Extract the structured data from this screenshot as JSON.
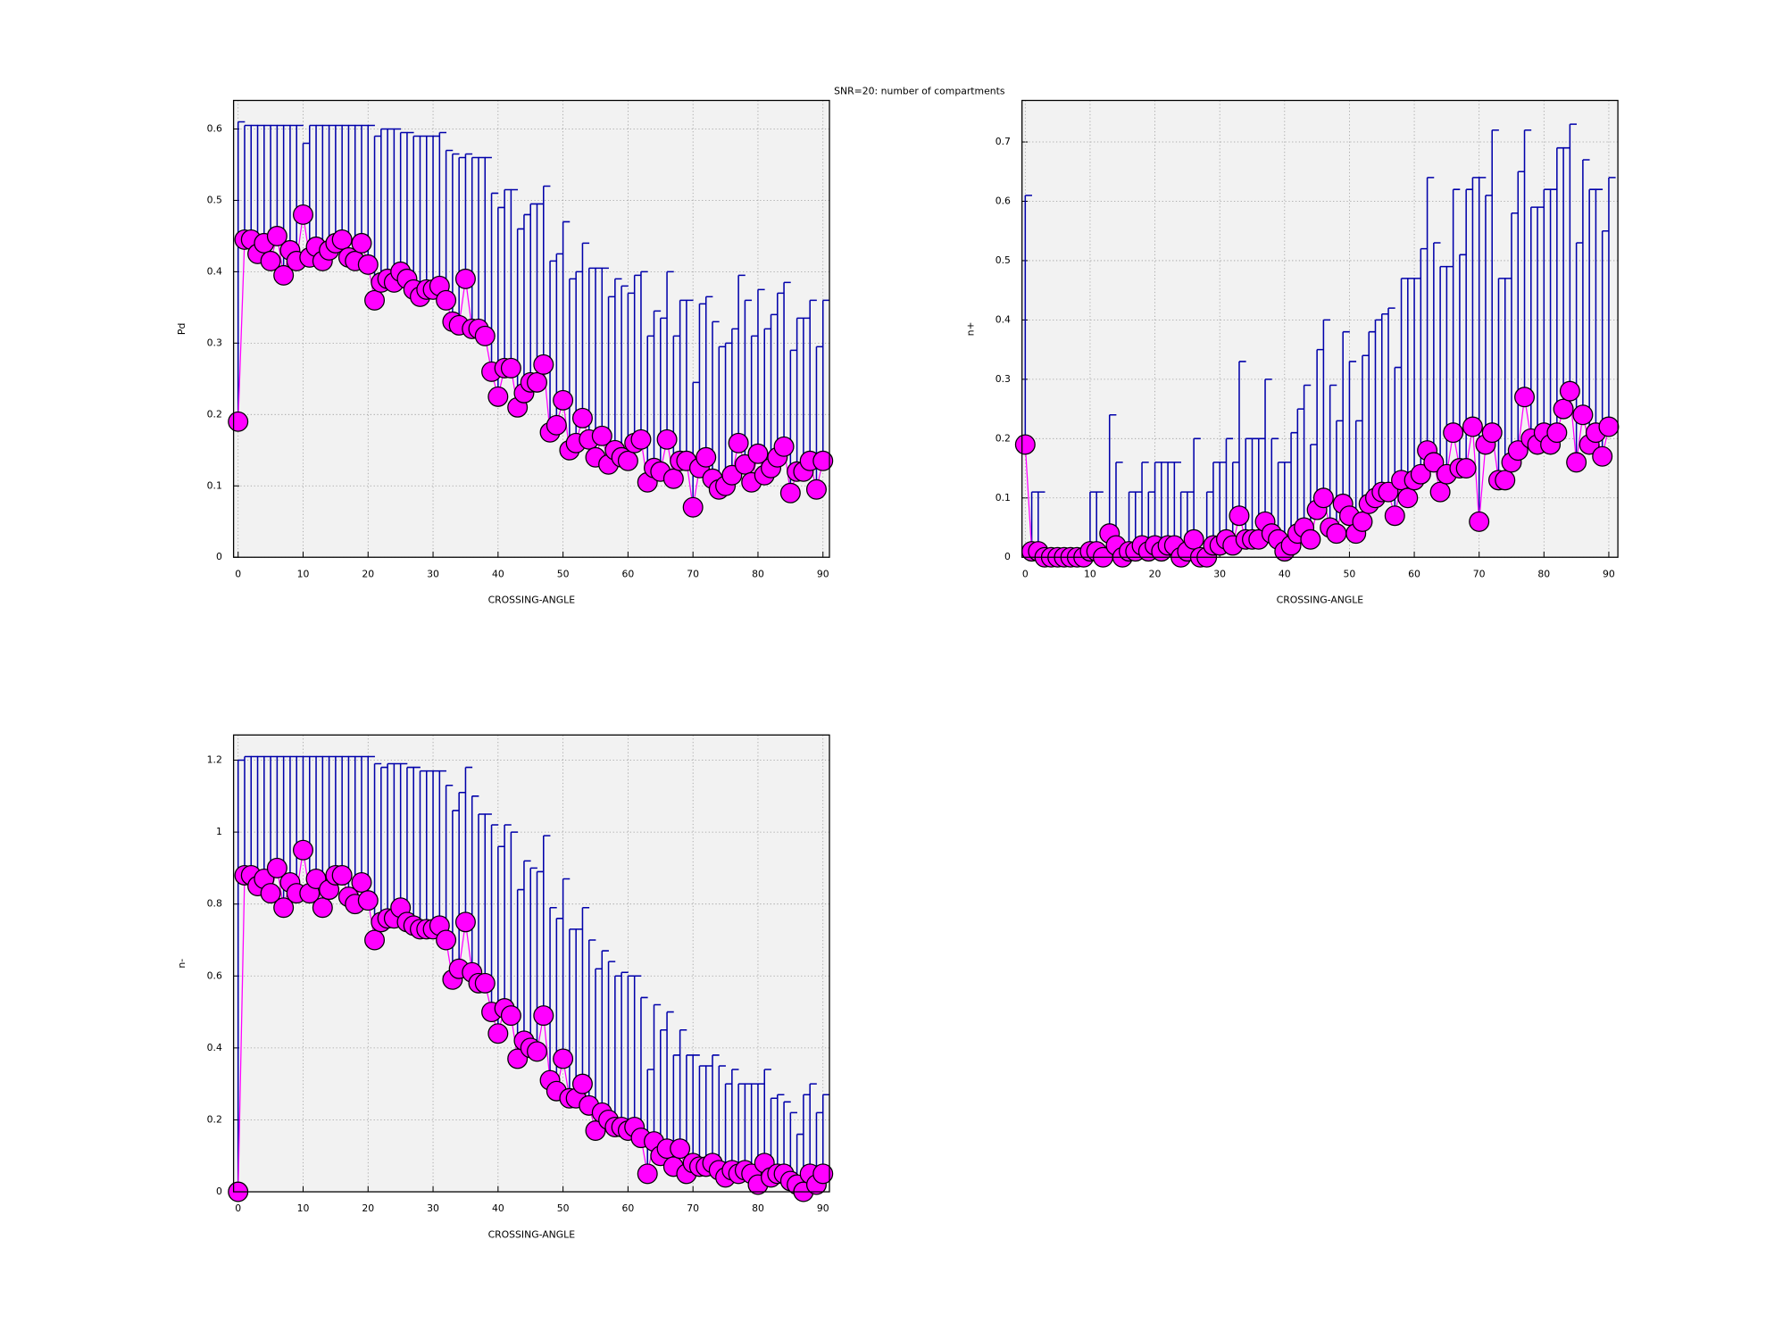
{
  "title": "SNR=20: number of compartments",
  "chart_data": [
    {
      "type": "errorbar",
      "xlabel": "CROSSING-ANGLE",
      "ylabel": "Pd",
      "x": [
        0,
        1,
        2,
        3,
        4,
        5,
        6,
        7,
        8,
        9,
        10,
        11,
        12,
        13,
        14,
        15,
        16,
        17,
        18,
        19,
        20,
        21,
        22,
        23,
        24,
        25,
        26,
        27,
        28,
        29,
        30,
        31,
        32,
        33,
        34,
        35,
        36,
        37,
        38,
        39,
        40,
        41,
        42,
        43,
        44,
        45,
        46,
        47,
        48,
        49,
        50,
        51,
        52,
        53,
        54,
        55,
        56,
        57,
        58,
        59,
        60,
        61,
        62,
        63,
        64,
        65,
        66,
        67,
        68,
        69,
        70,
        71,
        72,
        73,
        74,
        75,
        76,
        77,
        78,
        79,
        80,
        81,
        82,
        83,
        84,
        85,
        86,
        87,
        88,
        89,
        90
      ],
      "values": [
        0.19,
        0.445,
        0.445,
        0.425,
        0.44,
        0.415,
        0.45,
        0.395,
        0.43,
        0.415,
        0.48,
        0.42,
        0.435,
        0.415,
        0.43,
        0.44,
        0.445,
        0.42,
        0.415,
        0.44,
        0.41,
        0.36,
        0.385,
        0.39,
        0.385,
        0.4,
        0.39,
        0.375,
        0.365,
        0.375,
        0.375,
        0.38,
        0.36,
        0.33,
        0.325,
        0.39,
        0.32,
        0.32,
        0.31,
        0.26,
        0.225,
        0.265,
        0.265,
        0.21,
        0.23,
        0.245,
        0.245,
        0.27,
        0.175,
        0.185,
        0.22,
        0.15,
        0.16,
        0.195,
        0.165,
        0.14,
        0.17,
        0.13,
        0.15,
        0.14,
        0.135,
        0.16,
        0.165,
        0.105,
        0.125,
        0.12,
        0.165,
        0.11,
        0.135,
        0.135,
        0.07,
        0.125,
        0.14,
        0.11,
        0.095,
        0.1,
        0.115,
        0.16,
        0.13,
        0.105,
        0.145,
        0.115,
        0.125,
        0.14,
        0.155,
        0.09,
        0.12,
        0.12,
        0.135,
        0.095,
        0.135
      ],
      "errors": [
        0.42,
        0.16,
        0.16,
        0.18,
        0.165,
        0.19,
        0.155,
        0.21,
        0.175,
        0.19,
        0.1,
        0.185,
        0.17,
        0.19,
        0.175,
        0.165,
        0.16,
        0.185,
        0.19,
        0.165,
        0.195,
        0.23,
        0.215,
        0.21,
        0.215,
        0.195,
        0.205,
        0.215,
        0.225,
        0.215,
        0.215,
        0.215,
        0.21,
        0.235,
        0.235,
        0.175,
        0.24,
        0.24,
        0.25,
        0.25,
        0.265,
        0.25,
        0.25,
        0.25,
        0.25,
        0.25,
        0.25,
        0.25,
        0.24,
        0.24,
        0.25,
        0.24,
        0.24,
        0.245,
        0.24,
        0.265,
        0.235,
        0.235,
        0.24,
        0.24,
        0.235,
        0.235,
        0.235,
        0.205,
        0.22,
        0.215,
        0.235,
        0.2,
        0.225,
        0.225,
        0.175,
        0.23,
        0.225,
        0.22,
        0.2,
        0.2,
        0.205,
        0.235,
        0.23,
        0.205,
        0.23,
        0.205,
        0.215,
        0.23,
        0.23,
        0.2,
        0.215,
        0.215,
        0.225,
        0.2,
        0.225
      ],
      "color": "#ff00ff",
      "error_color": "#0000aa",
      "xlim": [
        -0.7,
        91
      ],
      "xticks": [
        0,
        10,
        20,
        30,
        40,
        50,
        60,
        70,
        80,
        90
      ],
      "ylim": [
        0,
        0.64
      ],
      "yticks": [
        0,
        0.1,
        0.2,
        0.3,
        0.4,
        0.5,
        0.6
      ],
      "grid": true
    },
    {
      "type": "errorbar",
      "xlabel": "CROSSING-ANGLE",
      "ylabel": "n+",
      "x": [
        0,
        1,
        2,
        3,
        4,
        5,
        6,
        7,
        8,
        9,
        10,
        11,
        12,
        13,
        14,
        15,
        16,
        17,
        18,
        19,
        20,
        21,
        22,
        23,
        24,
        25,
        26,
        27,
        28,
        29,
        30,
        31,
        32,
        33,
        34,
        35,
        36,
        37,
        38,
        39,
        40,
        41,
        42,
        43,
        44,
        45,
        46,
        47,
        48,
        49,
        50,
        51,
        52,
        53,
        54,
        55,
        56,
        57,
        58,
        59,
        60,
        61,
        62,
        63,
        64,
        65,
        66,
        67,
        68,
        69,
        70,
        71,
        72,
        73,
        74,
        75,
        76,
        77,
        78,
        79,
        80,
        81,
        82,
        83,
        84,
        85,
        86,
        87,
        88,
        89,
        90
      ],
      "values": [
        0.19,
        0.01,
        0.01,
        0,
        0,
        0,
        0,
        0,
        0,
        0,
        0.01,
        0.01,
        0,
        0.04,
        0.02,
        0,
        0.01,
        0.01,
        0.02,
        0.01,
        0.02,
        0.01,
        0.02,
        0.02,
        0,
        0.01,
        0.03,
        0,
        0,
        0.02,
        0.02,
        0.03,
        0.02,
        0.07,
        0.03,
        0.03,
        0.03,
        0.06,
        0.04,
        0.03,
        0.01,
        0.02,
        0.04,
        0.05,
        0.03,
        0.08,
        0.1,
        0.05,
        0.04,
        0.09,
        0.07,
        0.04,
        0.06,
        0.09,
        0.1,
        0.11,
        0.11,
        0.07,
        0.13,
        0.1,
        0.13,
        0.14,
        0.18,
        0.16,
        0.11,
        0.14,
        0.21,
        0.15,
        0.15,
        0.22,
        0.06,
        0.19,
        0.21,
        0.13,
        0.13,
        0.16,
        0.18,
        0.27,
        0.2,
        0.19,
        0.21,
        0.19,
        0.21,
        0.25,
        0.28,
        0.16,
        0.24,
        0.19,
        0.21,
        0.17,
        0.22
      ],
      "errors": [
        0.42,
        0.1,
        0.1,
        0,
        0,
        0,
        0,
        0,
        0,
        0,
        0.1,
        0.1,
        0,
        0.2,
        0.14,
        0,
        0.1,
        0.1,
        0.14,
        0.1,
        0.14,
        0.15,
        0.14,
        0.14,
        0.11,
        0.1,
        0.17,
        0,
        0.11,
        0.14,
        0.14,
        0.17,
        0.14,
        0.26,
        0.17,
        0.17,
        0.17,
        0.24,
        0.16,
        0.13,
        0.15,
        0.19,
        0.21,
        0.24,
        0.16,
        0.27,
        0.3,
        0.24,
        0.19,
        0.29,
        0.26,
        0.19,
        0.28,
        0.29,
        0.3,
        0.3,
        0.31,
        0.25,
        0.34,
        0.37,
        0.34,
        0.38,
        0.46,
        0.37,
        0.38,
        0.35,
        0.41,
        0.36,
        0.47,
        0.42,
        0.58,
        0.42,
        0.51,
        0.34,
        0.34,
        0.42,
        0.47,
        0.45,
        0.39,
        0.4,
        0.41,
        0.43,
        0.48,
        0.44,
        0.45,
        0.37,
        0.43,
        0.43,
        0.41,
        0.38,
        0.42
      ],
      "color": "#ff00ff",
      "error_color": "#0000aa",
      "xlim": [
        -0.5,
        91.4
      ],
      "xticks": [
        0,
        10,
        20,
        30,
        40,
        50,
        60,
        70,
        80,
        90
      ],
      "ylim": [
        0,
        0.77
      ],
      "yticks": [
        0,
        0.1,
        0.2,
        0.3,
        0.4,
        0.5,
        0.6,
        0.7
      ],
      "grid": true
    },
    {
      "type": "errorbar",
      "xlabel": "CROSSING-ANGLE",
      "ylabel": "n-",
      "x": [
        0,
        1,
        2,
        3,
        4,
        5,
        6,
        7,
        8,
        9,
        10,
        11,
        12,
        13,
        14,
        15,
        16,
        17,
        18,
        19,
        20,
        21,
        22,
        23,
        24,
        25,
        26,
        27,
        28,
        29,
        30,
        31,
        32,
        33,
        34,
        35,
        36,
        37,
        38,
        39,
        40,
        41,
        42,
        43,
        44,
        45,
        46,
        47,
        48,
        49,
        50,
        51,
        52,
        53,
        54,
        55,
        56,
        57,
        58,
        59,
        60,
        61,
        62,
        63,
        64,
        65,
        66,
        67,
        68,
        69,
        70,
        71,
        72,
        73,
        74,
        75,
        76,
        77,
        78,
        79,
        80,
        81,
        82,
        83,
        84,
        85,
        86,
        87,
        88,
        89,
        90
      ],
      "values": [
        0,
        0.88,
        0.88,
        0.85,
        0.87,
        0.83,
        0.9,
        0.79,
        0.86,
        0.83,
        0.95,
        0.83,
        0.87,
        0.79,
        0.84,
        0.88,
        0.88,
        0.82,
        0.8,
        0.86,
        0.81,
        0.7,
        0.75,
        0.76,
        0.76,
        0.79,
        0.75,
        0.74,
        0.73,
        0.73,
        0.73,
        0.74,
        0.7,
        0.59,
        0.62,
        0.75,
        0.61,
        0.58,
        0.58,
        0.5,
        0.44,
        0.51,
        0.49,
        0.37,
        0.42,
        0.4,
        0.39,
        0.49,
        0.31,
        0.28,
        0.37,
        0.26,
        0.26,
        0.3,
        0.24,
        0.17,
        0.22,
        0.2,
        0.18,
        0.18,
        0.17,
        0.18,
        0.15,
        0.05,
        0.14,
        0.1,
        0.12,
        0.07,
        0.12,
        0.05,
        0.08,
        0.07,
        0.07,
        0.08,
        0.06,
        0.04,
        0.06,
        0.05,
        0.06,
        0.05,
        0.02,
        0.08,
        0.04,
        0.05,
        0.05,
        0.03,
        0.02,
        0,
        0.05,
        0.02,
        0.05
      ],
      "errors": [
        1.2,
        0.33,
        0.33,
        0.36,
        0.34,
        0.38,
        0.31,
        0.42,
        0.35,
        0.38,
        0.26,
        0.38,
        0.34,
        0.42,
        0.37,
        0.33,
        0.33,
        0.39,
        0.41,
        0.35,
        0.4,
        0.49,
        0.43,
        0.43,
        0.43,
        0.4,
        0.43,
        0.44,
        0.44,
        0.44,
        0.44,
        0.43,
        0.43,
        0.47,
        0.49,
        0.43,
        0.49,
        0.47,
        0.47,
        0.52,
        0.52,
        0.51,
        0.51,
        0.47,
        0.5,
        0.5,
        0.5,
        0.5,
        0.48,
        0.48,
        0.5,
        0.47,
        0.47,
        0.49,
        0.46,
        0.45,
        0.45,
        0.44,
        0.42,
        0.43,
        0.43,
        0.42,
        0.39,
        0.29,
        0.38,
        0.35,
        0.38,
        0.31,
        0.33,
        0.33,
        0.3,
        0.28,
        0.28,
        0.3,
        0.29,
        0.26,
        0.28,
        0.25,
        0.24,
        0.25,
        0.28,
        0.26,
        0.22,
        0.22,
        0.2,
        0.19,
        0.14,
        0.27,
        0.25,
        0.2,
        0.22
      ],
      "color": "#ff00ff",
      "error_color": "#0000aa",
      "xlim": [
        -0.7,
        91
      ],
      "xticks": [
        0,
        10,
        20,
        30,
        40,
        50,
        60,
        70,
        80,
        90
      ],
      "ylim": [
        0,
        1.27
      ],
      "yticks": [
        0,
        0.2,
        0.4,
        0.6,
        0.8,
        1,
        1.2
      ],
      "grid": true
    }
  ]
}
